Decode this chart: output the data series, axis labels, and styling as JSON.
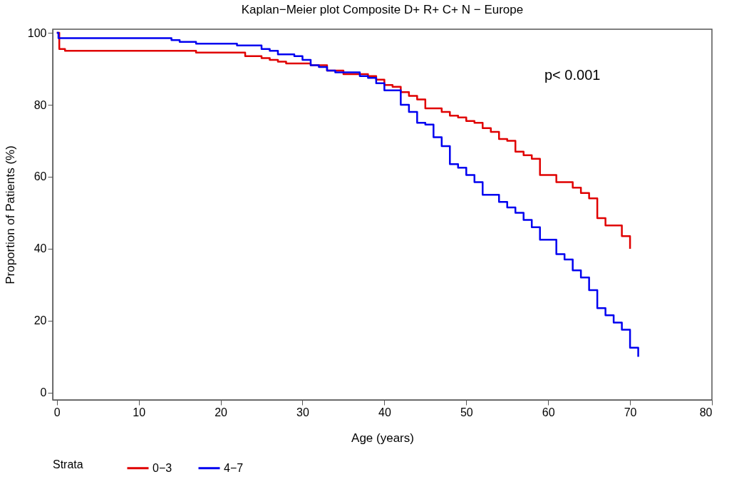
{
  "chart_data": {
    "type": "step",
    "title": "Kaplan−Meier plot Composite D+ R+ C+ N − Europe",
    "xlabel": "Age (years)",
    "ylabel": "Proportion of Patients (%)",
    "legend_title": "Strata",
    "xlim": [
      -0.5,
      80
    ],
    "xticks": [
      0,
      10,
      20,
      30,
      40,
      50,
      60,
      70,
      80
    ],
    "ylim": [
      -2,
      101
    ],
    "yticks": [
      0,
      20,
      40,
      60,
      80,
      100
    ],
    "grid": false,
    "legend": "bottom",
    "line_style": "solid",
    "marker": "none",
    "annotations": [
      "p< 0.001"
    ],
    "series": [
      {
        "name": "0−3",
        "color": "#e00000",
        "x": [
          0,
          0.3,
          1,
          17,
          23,
          25,
          26,
          27,
          28,
          31,
          33,
          35,
          38,
          39,
          40,
          41,
          42,
          43,
          44,
          45,
          47,
          48,
          49,
          50,
          51,
          52,
          53,
          54,
          55,
          56,
          57,
          58,
          59,
          61,
          63,
          64,
          65,
          66,
          67,
          69,
          70
        ],
        "values": [
          100,
          95.5,
          95,
          94.5,
          93.5,
          93,
          92.5,
          92,
          91.5,
          91,
          89.5,
          88.5,
          88,
          87,
          85.5,
          85,
          83.5,
          82.5,
          81.5,
          79,
          78,
          77,
          76.5,
          75.5,
          75,
          73.5,
          72.5,
          70.5,
          70,
          67,
          66,
          65,
          60.5,
          58.5,
          57,
          55.5,
          54,
          48.5,
          46.5,
          43.5,
          40
        ]
      },
      {
        "name": "4−7",
        "color": "#0000f0",
        "x": [
          0,
          0.2,
          11,
          14,
          15,
          17,
          22,
          25,
          26,
          27,
          29,
          30,
          31,
          32,
          33,
          34,
          37,
          38,
          39,
          40,
          42,
          43,
          44,
          45,
          46,
          47,
          48,
          49,
          50,
          51,
          52,
          54,
          55,
          56,
          57,
          58,
          59,
          61,
          62,
          63,
          64,
          65,
          66,
          67,
          68,
          69,
          70,
          71
        ],
        "values": [
          100,
          98.5,
          98.5,
          98,
          97.5,
          97,
          96.5,
          95.5,
          95,
          94,
          93.5,
          92.5,
          91,
          90.5,
          89.5,
          89,
          88,
          87.5,
          86,
          84,
          80,
          78,
          75,
          74.5,
          71,
          68.5,
          63.5,
          62.5,
          60.5,
          58.5,
          55,
          53,
          51.5,
          50,
          48,
          46,
          42.5,
          38.5,
          37,
          34,
          32,
          28.5,
          23.5,
          21.5,
          19.5,
          17.5,
          12.5,
          10
        ]
      }
    ]
  }
}
